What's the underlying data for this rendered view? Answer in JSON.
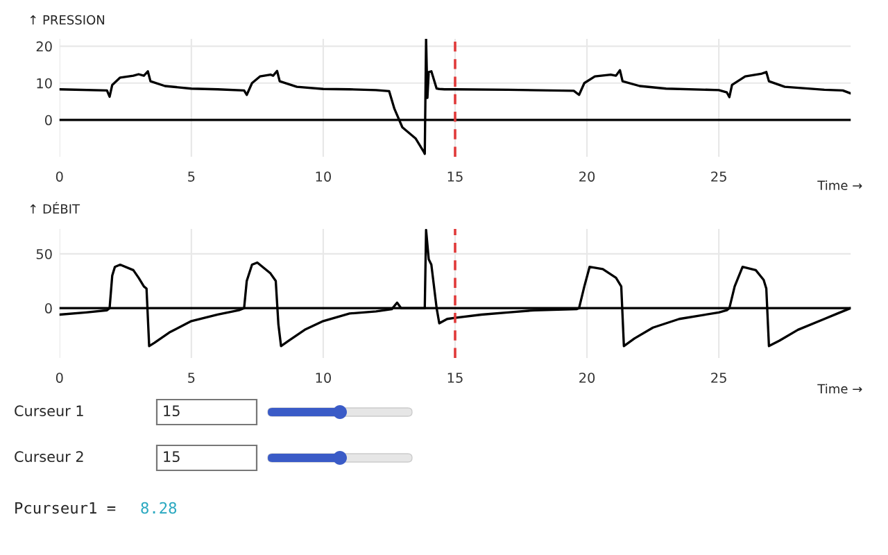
{
  "chart_data": [
    {
      "type": "line",
      "ylabel": "↑ PRESSION",
      "xlabel": "Time →",
      "xlim": [
        0,
        30
      ],
      "xticks": [
        0,
        5,
        10,
        15,
        20,
        25
      ],
      "ylim": [
        -10,
        22
      ],
      "yticks": [
        0,
        10,
        20
      ],
      "grid": true,
      "tick_labels": "xy",
      "ref_lines": [
        {
          "axis": "y",
          "value": 0,
          "label": null,
          "color": "#000000",
          "line_style": "solid"
        },
        {
          "axis": "x",
          "value": 15,
          "label": null,
          "color": "#e03a3a",
          "line_style": "dashed"
        }
      ],
      "series": [
        {
          "color": "#000000",
          "x": [
            0,
            1.8,
            1.9,
            2.0,
            2.3,
            2.8,
            3.0,
            3.2,
            3.35,
            3.45,
            4.0,
            5,
            6,
            7.0,
            7.1,
            7.3,
            7.6,
            8.0,
            8.1,
            8.25,
            8.35,
            9.0,
            10,
            11,
            12,
            12.5,
            12.7,
            13.0,
            13.5,
            13.8,
            13.85,
            13.9,
            13.95,
            14.0,
            14.1,
            14.3,
            14.4,
            14.6,
            15,
            17,
            19.5,
            19.7,
            19.9,
            20.3,
            20.9,
            21.1,
            21.25,
            21.35,
            22,
            23,
            25,
            25.3,
            25.4,
            25.5,
            26,
            26.6,
            26.8,
            26.9,
            27.5,
            29,
            29.7,
            30
          ],
          "values": [
            8.3,
            8.0,
            6.3,
            9.5,
            11.5,
            12.0,
            12.4,
            12.0,
            13.2,
            10.5,
            9.2,
            8.5,
            8.3,
            8.0,
            6.8,
            10,
            11.8,
            12.3,
            12.0,
            13.3,
            10.5,
            9.0,
            8.4,
            8.3,
            8.1,
            7.8,
            3,
            -2,
            -5,
            -8.5,
            -9.2,
            22,
            6,
            13,
            13.2,
            8.5,
            8.4,
            8.3,
            8.3,
            8.2,
            7.9,
            6.8,
            10,
            11.8,
            12.3,
            12.0,
            13.5,
            10.5,
            9.2,
            8.5,
            8.1,
            7.5,
            6.2,
            9.5,
            11.8,
            12.5,
            13.0,
            10.5,
            9.0,
            8.2,
            8.0,
            7.2
          ]
        }
      ]
    },
    {
      "type": "line",
      "ylabel": "↑ DÉBIT",
      "xlabel": "Time →",
      "xlim": [
        0,
        30
      ],
      "xticks": [
        0,
        5,
        10,
        15,
        20,
        25
      ],
      "ylim": [
        -46,
        73
      ],
      "yticks": [
        0,
        50
      ],
      "grid": true,
      "ref_lines": [
        {
          "axis": "y",
          "value": 0,
          "label": null,
          "color": "#000000",
          "line_style": "solid"
        },
        {
          "axis": "x",
          "value": 15,
          "label": null,
          "color": "#e03a3a",
          "line_style": "dashed"
        }
      ],
      "series": [
        {
          "color": "#000000",
          "x": [
            0,
            1.0,
            1.8,
            1.9,
            2.0,
            2.1,
            2.3,
            2.8,
            3.0,
            3.2,
            3.3,
            3.4,
            3.6,
            4.2,
            5,
            6,
            6.8,
            7.0,
            7.1,
            7.3,
            7.5,
            8.0,
            8.2,
            8.3,
            8.4,
            8.7,
            9.3,
            10,
            11,
            12,
            12.6,
            12.8,
            12.95,
            13.5,
            13.85,
            13.9,
            14.0,
            14.1,
            14.3,
            14.4,
            14.7,
            15,
            16,
            17,
            18,
            19.6,
            19.7,
            19.9,
            20.1,
            20.6,
            21.1,
            21.3,
            21.4,
            21.8,
            22.5,
            23.5,
            25,
            25.3,
            25.4,
            25.6,
            25.9,
            26.4,
            26.7,
            26.8,
            26.9,
            27.3,
            28,
            29,
            29.5,
            30
          ],
          "values": [
            -6,
            -4,
            -2,
            0,
            30,
            38,
            40,
            35,
            28,
            20,
            18,
            -35,
            -32,
            -22,
            -12,
            -6,
            -2,
            0,
            25,
            40,
            42,
            32,
            25,
            -15,
            -35,
            -30,
            -20,
            -12,
            -5,
            -3,
            -1,
            5,
            0,
            0,
            0,
            72,
            45,
            40,
            0,
            -14,
            -10,
            -9,
            -6,
            -4,
            -2,
            -1,
            0,
            20,
            38,
            36,
            28,
            20,
            -35,
            -28,
            -18,
            -10,
            -4,
            -2,
            0,
            20,
            38,
            35,
            26,
            18,
            -35,
            -30,
            -20,
            -10,
            -5,
            0
          ]
        }
      ]
    },
    {
      "type": "other",
      "annotations": [
        "Curseur 1",
        "15",
        "Curseur 2",
        "15",
        "Pcurseur1 =",
        "8.28"
      ]
    }
  ]
}
